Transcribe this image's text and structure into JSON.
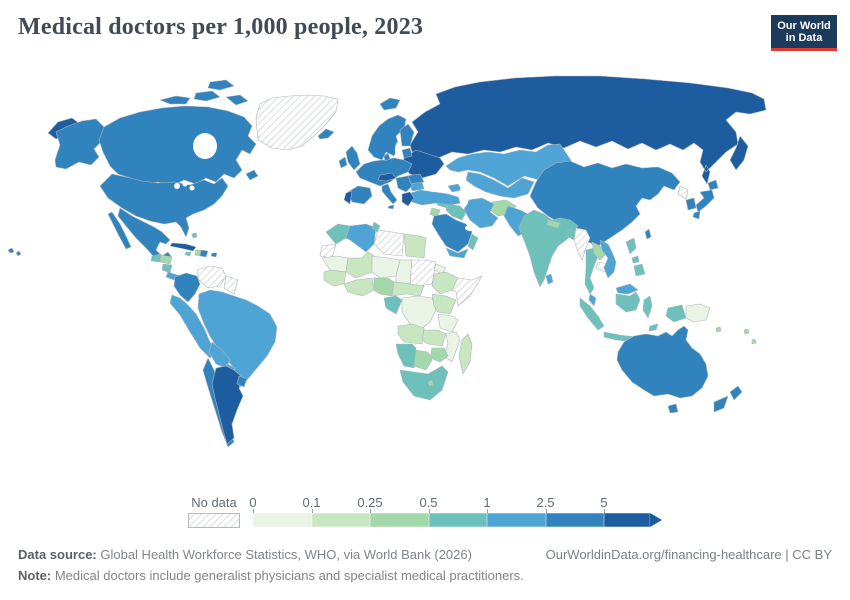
{
  "header": {
    "title": "Medical doctors per 1,000 people, 2023"
  },
  "logo": {
    "line1": "Our World",
    "line2": "in Data",
    "bg_color": "#1b3a5c",
    "accent_color": "#e0392e"
  },
  "legend": {
    "no_data_label": "No data",
    "tick_labels": [
      "0",
      "0.1",
      "0.25",
      "0.5",
      "1",
      "2.5",
      "5"
    ],
    "bucket_order": [
      "0-0.1",
      "0.1-0.25",
      "0.25-0.5",
      "0.5-1",
      "1-2.5",
      "2.5-5",
      "5+"
    ],
    "bucket_colors": {
      "0-0.1": "#e9f4e4",
      "0.1-0.25": "#c8e6c0",
      "0.25-0.5": "#a3d9aa",
      "0.5-1": "#6ec0bb",
      "1-2.5": "#4ea5d5",
      "2.5-5": "#3183bd",
      "5+": "#1d5d9f"
    }
  },
  "footer": {
    "source_label": "Data source:",
    "source_text": " Global Health Workforce Statistics, WHO, via World Bank (2026)",
    "note_label": "Note:",
    "note_text": " Medical doctors include generalist physicians and specialist medical practitioners.",
    "credit": "OurWorldinData.org/financing-healthcare | CC BY"
  },
  "chart_data": {
    "type": "choropleth_map",
    "title": "Medical doctors per 1,000 people, 2023",
    "unit": "medical doctors per 1,000 people",
    "year": 2023,
    "legend_bins": [
      "0",
      "0.1",
      "0.25",
      "0.5",
      "1",
      "2.5",
      "5"
    ],
    "no_data_style": "diagonal-hatch",
    "regions": {
      "alaska": "2.5-5",
      "canada": "2.5-5",
      "usa": "2.5-5",
      "hawaii": "2.5-5",
      "greenland": "no-data",
      "mexico": "2.5-5",
      "guatemala": "0.5-1",
      "honduras": "0.25-0.5",
      "nicaragua": "0.5-1",
      "costa-rica-panama": "1-2.5",
      "cuba": "5+",
      "jamaica": "0.5-1",
      "haiti": "0.25-0.5",
      "dominican-republic": "2.5-5",
      "puerto-rico": "2.5-5",
      "bahamas": "0.5-1",
      "colombia": "2.5-5",
      "venezuela": "no-data",
      "guyanas": "no-data",
      "brazil": "1-2.5",
      "ecuador-peru": "1-2.5",
      "bolivia": "1-2.5",
      "paraguay": "1-2.5",
      "chile": "2.5-5",
      "argentina": "5+",
      "uruguay": "2.5-5",
      "iceland": "2.5-5",
      "united-kingdom": "2.5-5",
      "ireland": "2.5-5",
      "norway-sweden": "2.5-5",
      "svalbard": "2.5-5",
      "finland": "2.5-5",
      "denmark": "2.5-5",
      "baltics": "2.5-5",
      "western-europe": "2.5-5",
      "iberia": "2.5-5",
      "portugal": "5+",
      "italy": "2.5-5",
      "austria-switzerland": "5+",
      "balkans": "2.5-5",
      "greece": "5+",
      "romania": "2.5-5",
      "bulgaria": "1-2.5",
      "ukraine-belarus": "5+",
      "russia": "5+",
      "kazakhstan": "1-2.5",
      "central-asia": "1-2.5",
      "turkey": "1-2.5",
      "caucasus": "1-2.5",
      "syria": "0.5-1",
      "jordan-israel": "0.25-0.5",
      "iraq": "0.5-1",
      "iran": "1-2.5",
      "saudi-arabia": "2.5-5",
      "yemen": "1-2.5",
      "oman": "0.5-1",
      "afghanistan": "0.25-0.5",
      "pakistan": "1-2.5",
      "india": "0.5-1",
      "nepal": "0.25-0.5",
      "bangladesh": "0.5-1",
      "sri-lanka": "1-2.5",
      "china-mongolia": "2.5-5",
      "taiwan": "2.5-5",
      "north-korea": "no-data",
      "south-korea": "2.5-5",
      "japan": "2.5-5",
      "myanmar": "no-data",
      "thailand": "0.5-1",
      "laos": "0.25-0.5",
      "cambodia": "no-data",
      "vietnam": "1-2.5",
      "malaysia": "1-2.5",
      "indonesia": "0.5-1",
      "philippines": "0.5-1",
      "papua-new-guinea": "0-0.1",
      "pacific-islands": "0.25-0.5",
      "australia": "2.5-5",
      "new-zealand": "2.5-5",
      "morocco": "0.5-1",
      "western-sahara": "no-data",
      "algeria": "1-2.5",
      "tunisia": "0.5-1",
      "libya": "no-data",
      "egypt": "0.1-0.25",
      "mauritania": "0-0.1",
      "mali": "0.1-0.25",
      "niger": "0-0.1",
      "chad": "0-0.1",
      "sudan": "no-data",
      "eritrea": "0-0.1",
      "ethiopia": "0.1-0.25",
      "somalia": "no-data",
      "senegal-guinea": "0.1-0.25",
      "ivory-coast-ghana": "0.1-0.25",
      "nigeria": "0.25-0.5",
      "cameroon-car": "0.1-0.25",
      "gabon-congo": "0.5-1",
      "dr-congo": "0-0.1",
      "uganda-kenya": "0.1-0.25",
      "tanzania": "0-0.1",
      "angola": "0.1-0.25",
      "zambia": "0.1-0.25",
      "malawi-mozambique": "0-0.1",
      "zimbabwe": "0.25-0.5",
      "namibia": "0.5-1",
      "botswana": "0.25-0.5",
      "south-africa": "0.5-1",
      "lesotho": "0.25-0.5",
      "madagascar": "0.1-0.25"
    }
  }
}
